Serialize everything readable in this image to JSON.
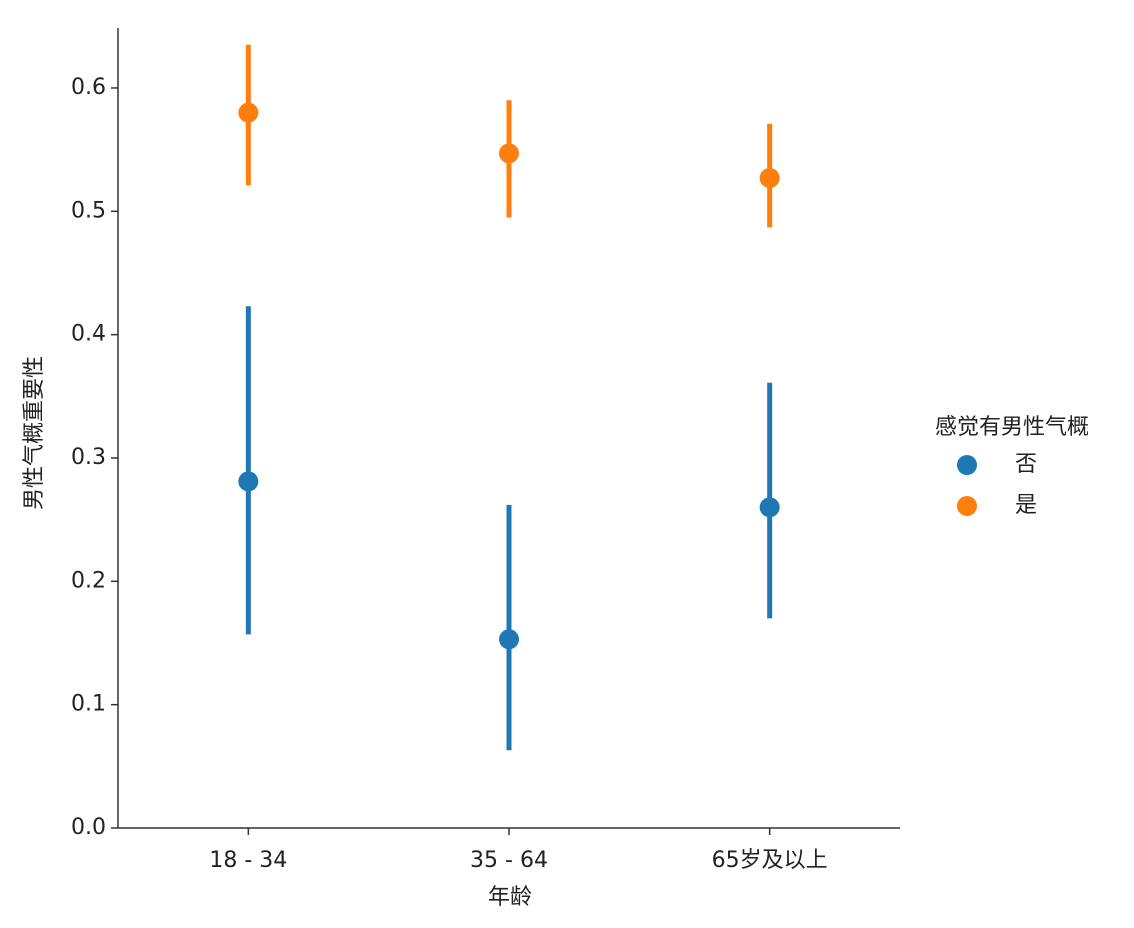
{
  "chart_data": {
    "type": "point",
    "x_label": "年龄",
    "y_label": "男性气概重要性",
    "categories": [
      "18 - 34",
      "35 - 64",
      "65岁及以上"
    ],
    "legend_title": "感觉有男性气概",
    "legend_position": "right",
    "series": [
      {
        "name": "否",
        "color": "#1f77b4",
        "values": [
          0.281,
          0.153,
          0.26
        ],
        "ci_low": [
          0.157,
          0.063,
          0.17
        ],
        "ci_high": [
          0.423,
          0.262,
          0.361
        ]
      },
      {
        "name": "是",
        "color": "#ff7f0e",
        "values": [
          0.58,
          0.547,
          0.527
        ],
        "ci_low": [
          0.521,
          0.495,
          0.487
        ],
        "ci_high": [
          0.635,
          0.59,
          0.571
        ]
      }
    ],
    "ylim": [
      0,
      0.65
    ],
    "yticks": [
      {
        "value": 0,
        "label": "0.0"
      },
      0.1,
      0.2,
      0.3,
      0.4,
      0.5,
      0.6
    ]
  }
}
